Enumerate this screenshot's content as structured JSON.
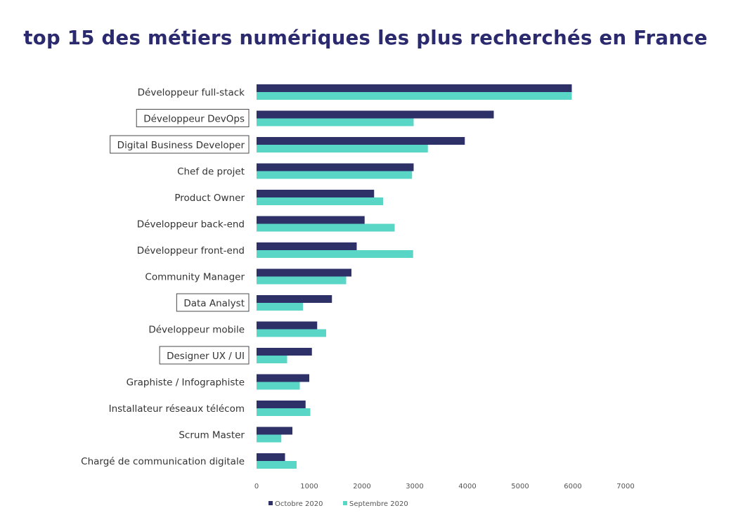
{
  "chart_data": {
    "type": "bar",
    "orientation": "horizontal",
    "title": "top 15 des métiers numériques les plus recherchés en France",
    "categories": [
      "Développeur full-stack",
      "Développeur DevOps",
      "Digital Business Developer",
      "Chef de projet",
      "Product Owner",
      "Développeur back-end",
      "Développeur front-end",
      "Community Manager",
      "Data Analyst",
      "Développeur mobile",
      "Designer UX / UI",
      "Graphiste / Infographiste",
      "Installateur réseaux télécom",
      "Scrum Master",
      "Chargé de communication digitale"
    ],
    "boxed_categories": [
      "Développeur DevOps",
      "Digital Business Developer",
      "Data Analyst",
      "Designer UX / UI"
    ],
    "series": [
      {
        "name": "Octobre 2020",
        "color": "#2e3168",
        "values": [
          5980,
          4500,
          3950,
          2980,
          2230,
          2050,
          1900,
          1800,
          1430,
          1150,
          1050,
          1000,
          930,
          680,
          540
        ]
      },
      {
        "name": "Septembre 2020",
        "color": "#5ad6c7",
        "values": [
          5980,
          2980,
          3250,
          2950,
          2400,
          2620,
          2970,
          1700,
          880,
          1320,
          580,
          820,
          1020,
          470,
          760
        ]
      }
    ],
    "xlim": [
      0,
      7000
    ],
    "xticks": [
      "0",
      "1000",
      "2000",
      "3000",
      "4000",
      "5000",
      "6000",
      "7000"
    ],
    "legend_position": "bottom",
    "grid": false
  }
}
